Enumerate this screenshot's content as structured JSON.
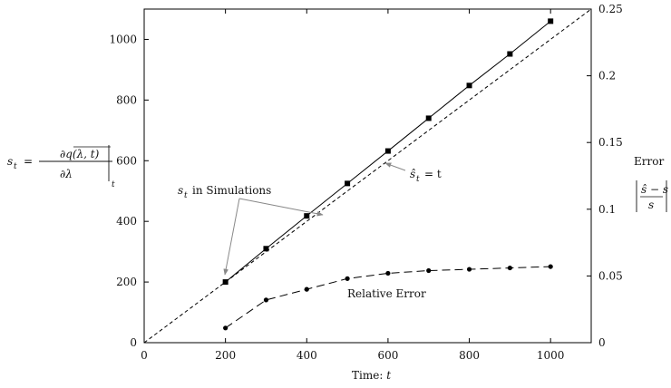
{
  "chart_data": {
    "type": "line",
    "title": "",
    "xlabel": "Time: t",
    "ylabel": "s_t = ∂q(λ,t)/∂λ |_t",
    "y2label": "Error |(ŝ − s)/s|",
    "xlim": [
      0,
      1100
    ],
    "ylim": [
      0,
      1100
    ],
    "y2lim": [
      0,
      0.25
    ],
    "x_ticks": [
      0,
      200,
      400,
      600,
      800,
      1000
    ],
    "y_ticks": [
      0,
      200,
      400,
      600,
      800,
      1000
    ],
    "y2_ticks": [
      0,
      0.05,
      0.1,
      0.15,
      0.2,
      0.25
    ],
    "x_tick_labels": [
      "0",
      "200",
      "400",
      "600",
      "800",
      "1000"
    ],
    "y_tick_labels": [
      "0",
      "200",
      "400",
      "600",
      "800",
      "1000"
    ],
    "y2_tick_labels": [
      "0",
      "0.05",
      "0.1",
      "0.15",
      "0.2",
      "0.25"
    ],
    "grid": false,
    "series": [
      {
        "name": "s_t in Simulations",
        "axis": "left",
        "style": "solid line, square markers",
        "x": [
          200,
          300,
          400,
          500,
          600,
          700,
          800,
          900,
          1000
        ],
        "values": [
          200,
          310,
          418,
          525,
          632,
          740,
          848,
          952,
          1060
        ]
      },
      {
        "name": "ŝ_t = t",
        "axis": "left",
        "style": "short-dashed line, no markers",
        "x": [
          0,
          1100
        ],
        "values": [
          0,
          1100
        ]
      },
      {
        "name": "Relative Error",
        "axis": "right",
        "style": "long-dashed line, round markers",
        "x": [
          200,
          300,
          400,
          500,
          600,
          700,
          800,
          900,
          1000
        ],
        "values": [
          0.011,
          0.032,
          0.04,
          0.048,
          0.052,
          0.054,
          0.055,
          0.056,
          0.057
        ]
      }
    ],
    "annotations": {
      "sim_label_main": "in Simulations",
      "shat_label": "= t",
      "relerr_label": "Relative Error",
      "error_word": "Error"
    }
  }
}
